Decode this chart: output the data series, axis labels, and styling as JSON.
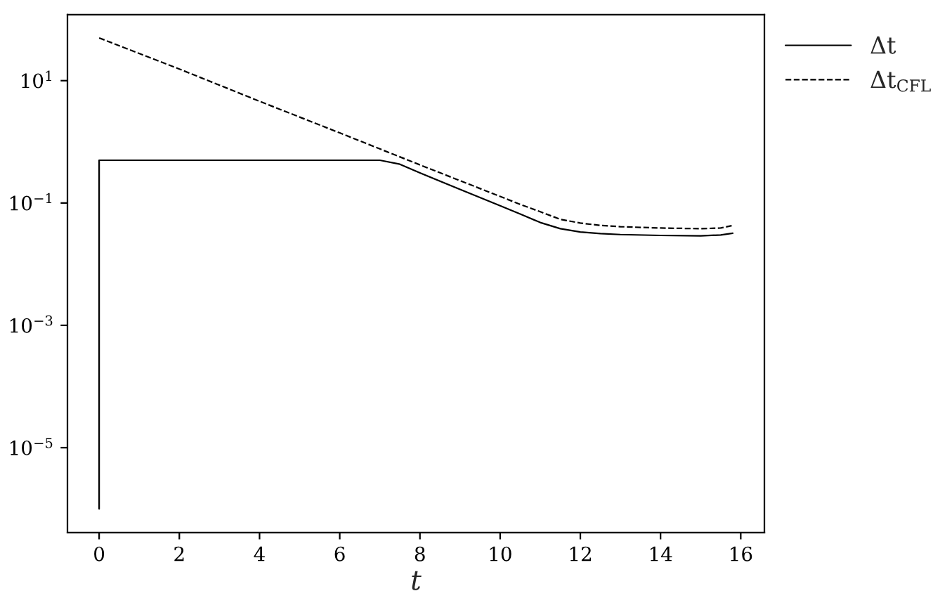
{
  "chart_data": {
    "type": "line",
    "xlabel": "t",
    "log": "y",
    "legend": "top right",
    "xlim": [
      -0.79,
      16.59
    ],
    "xticks": [
      0,
      2,
      4,
      6,
      8,
      10,
      12,
      14,
      16
    ],
    "ylim": [
      4.1e-07,
      120
    ],
    "yticks": [
      {
        "value": 10,
        "label": "10$^{1}$"
      },
      {
        "value": 0.1,
        "label": "10$^{−1}$"
      },
      {
        "value": 0.001,
        "label": "10$^{−3}$"
      },
      {
        "value": 1e-05,
        "label": "10$^{−5}$"
      }
    ],
    "series": [
      {
        "name": "Δt",
        "color": "#000000",
        "line_style": "solid",
        "x": [
          0,
          0,
          7,
          7.5,
          8,
          9,
          10,
          10.5,
          11,
          11.5,
          12,
          12.5,
          13,
          14,
          15,
          15.5,
          15.8
        ],
        "values": [
          1e-06,
          0.5,
          0.5,
          0.43,
          0.31,
          0.167,
          0.09,
          0.066,
          0.048,
          0.038,
          0.0335,
          0.0316,
          0.0305,
          0.0295,
          0.029,
          0.03,
          0.032
        ]
      },
      {
        "name": "Δt$_{CFL}$",
        "color": "#000000",
        "line_style": "dashed",
        "x": [
          0,
          2,
          4,
          6,
          8,
          10,
          10.5,
          11,
          11.5,
          12,
          12.5,
          13,
          14,
          15,
          15.5,
          15.8
        ],
        "values": [
          50,
          15.5,
          4.6,
          1.4,
          0.42,
          0.128,
          0.095,
          0.072,
          0.054,
          0.047,
          0.043,
          0.041,
          0.039,
          0.038,
          0.039,
          0.043
        ]
      }
    ]
  }
}
